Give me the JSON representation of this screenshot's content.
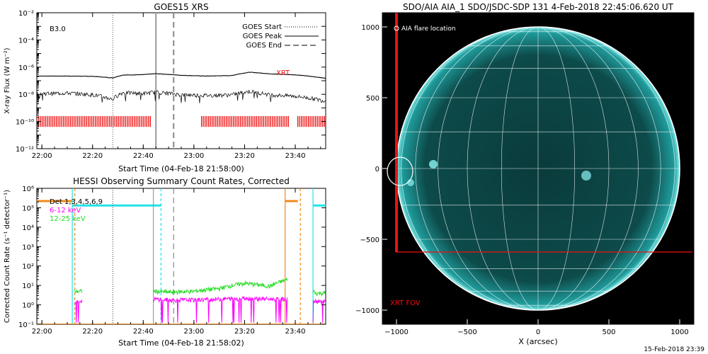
{
  "colors": {
    "cyan": "#22e3e8",
    "orange": "#f08a1c",
    "magenta": "#ff00ff",
    "green": "#22dd22",
    "red": "#ee1111",
    "sun": "#1aa8a8"
  },
  "chart_data": [
    {
      "type": "line",
      "title": "GOES15 XRS",
      "xlabel": "Start Time (04-Feb-18 21:58:00)",
      "ylabel": "X-ray Flux (W m⁻²)",
      "xlim": [
        "21:58",
        "23:52"
      ],
      "ylim": [
        1e-12,
        0.01
      ],
      "yscale": "log",
      "x_tick_labels": [
        "22:00",
        "22:20",
        "22:40",
        "23:00",
        "23:20",
        "23:40"
      ],
      "y_tick_labels": [
        "10⁻¹²",
        "10⁻¹⁰",
        "10⁻⁸",
        "10⁻⁶",
        "10⁻⁴",
        "10⁻²"
      ],
      "annotation": "B3.0",
      "xrt_label": "XRT",
      "legend": {
        "position": "top-right",
        "entries": [
          "GOES Start",
          "GOES Peak",
          "GOES End"
        ]
      },
      "markers": {
        "goes_start": "22:28",
        "goes_peak": "22:45",
        "goes_end": "22:52"
      },
      "series": [
        {
          "x": [
            "21:58",
            "22:10",
            "22:20",
            "22:28",
            "22:32",
            "22:40",
            "22:45",
            "22:55",
            "23:05",
            "23:15",
            "23:22",
            "23:30",
            "23:40",
            "23:52"
          ],
          "values": [
            2.2e-07,
            2.2e-07,
            2.1e-07,
            1.6e-07,
            2.6e-07,
            2.8e-07,
            3.3e-07,
            2.5e-07,
            2.2e-07,
            2.4e-07,
            4.2e-07,
            3.2e-07,
            2.7e-07,
            1.5e-07
          ]
        },
        {
          "x": [
            "21:58",
            "22:10",
            "22:20",
            "22:28",
            "22:32",
            "22:40",
            "22:45",
            "22:55",
            "23:05",
            "23:15",
            "23:22",
            "23:30",
            "23:40",
            "23:52"
          ],
          "values": [
            1.1e-08,
            1.2e-08,
            9e-09,
            4e-09,
            1.3e-08,
            1.1e-08,
            1.4e-08,
            9e-09,
            8e-09,
            9e-09,
            1.6e-08,
            9e-09,
            7e-09,
            3e-09
          ]
        }
      ]
    },
    {
      "type": "line",
      "title": "HESSI Observing Summary Count Rates, Corrected",
      "xlabel": "Start Time (04-Feb-18 21:58:02)",
      "ylabel": "Corrected Count Rate (s⁻¹ detector⁻¹)",
      "xlim": [
        "21:58",
        "23:52"
      ],
      "ylim": [
        0.1,
        1000000.0
      ],
      "yscale": "log",
      "x_tick_labels": [
        "22:00",
        "22:20",
        "22:40",
        "23:00",
        "23:20",
        "23:40"
      ],
      "y_tick_labels": [
        "10⁻¹",
        "10⁰",
        "10¹",
        "10²",
        "10³",
        "10⁴",
        "10⁵",
        "10⁶"
      ],
      "legend": {
        "position": "top-left",
        "entries": [
          "Det 1,3,4,5,6,9",
          "6-12 keV",
          "12-25 keV"
        ]
      },
      "series": [
        {
          "name": "6-12 keV",
          "x": [
            "22:13",
            "22:16",
            "22:44",
            "22:50",
            "23:00",
            "23:10",
            "23:20",
            "23:30",
            "23:37",
            "23:48",
            "23:52"
          ],
          "values": [
            1.5,
            1.5,
            2,
            1.8,
            1.8,
            2,
            2.2,
            2,
            2,
            1.5,
            1.5
          ]
        },
        {
          "name": "12-25 keV",
          "x": [
            "22:13",
            "22:16",
            "22:44",
            "22:50",
            "23:00",
            "23:10",
            "23:20",
            "23:30",
            "23:37",
            "23:48",
            "23:52"
          ],
          "values": [
            5,
            5,
            5,
            4.5,
            5,
            7,
            13,
            9,
            20,
            4,
            4
          ]
        }
      ]
    },
    {
      "type": "heatmap",
      "title": "SDO/AIA AIA_1 SDO/JSDC-SDP 131  4-Feb-2018 22:45:06.620 UT",
      "xlabel": "X (arcsec)",
      "ylabel": "",
      "xlim": [
        -1100,
        1100
      ],
      "ylim": [
        -1100,
        1100
      ],
      "x_tick_labels": [
        "−1000",
        "−500",
        "0",
        "500",
        "1000"
      ],
      "y_tick_labels": [
        "−1000",
        "−500",
        "0",
        "500",
        "1000"
      ],
      "legend": {
        "position": "top-left",
        "entries": [
          "AIA flare location"
        ]
      },
      "fov_label": "XRT FOV",
      "flare_location": {
        "x": -975,
        "y": -20
      }
    }
  ],
  "timestamp": "15-Feb-2018 23:39"
}
